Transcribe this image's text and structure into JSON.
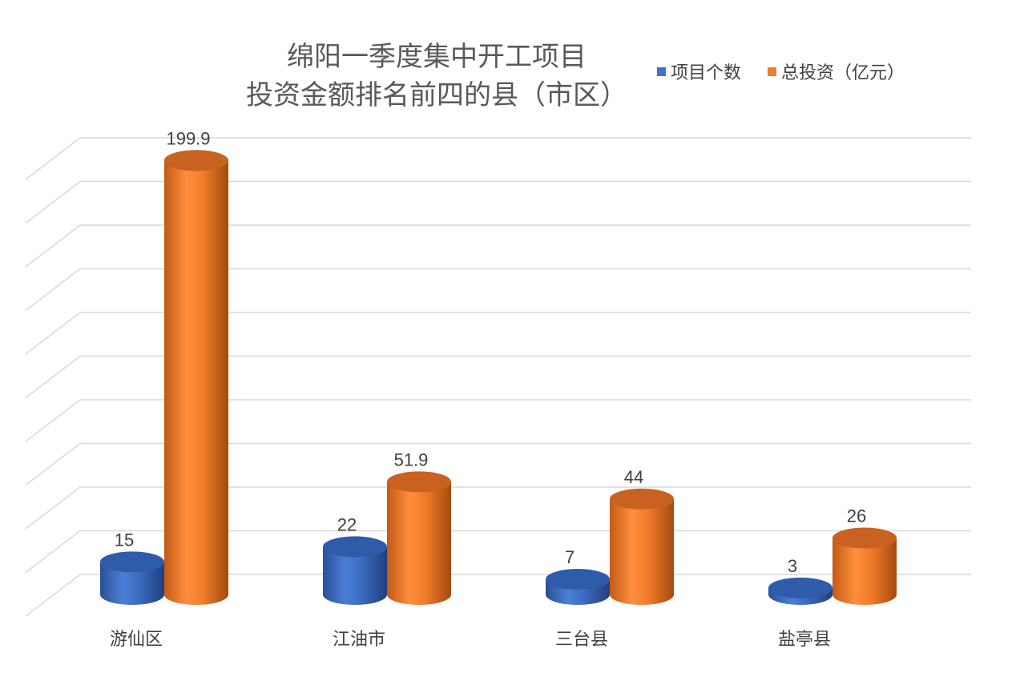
{
  "chart_data": {
    "type": "bar",
    "title": "绵阳一季度集中开工项目投资金额排名前四的县（市区）",
    "title_lines": [
      "绵阳一季度集中开工项目",
      "投资金额排名前四的县（市区）"
    ],
    "categories": [
      "游仙区",
      "江油市",
      "三台县",
      "盐亭县"
    ],
    "series": [
      {
        "name": "项目个数",
        "values": [
          15,
          22,
          7,
          3
        ],
        "labels": [
          "15",
          "22",
          "7",
          "3"
        ],
        "color": "#4472C4"
      },
      {
        "name": "总投资（亿元）",
        "values": [
          199.9,
          51.9,
          44,
          26
        ],
        "labels": [
          "199.9",
          "51.9",
          "44",
          "26"
        ],
        "color": "#ED7D31"
      }
    ],
    "ylim": [
      0,
      200
    ],
    "grid": true,
    "legend_position": "top-right",
    "shape": "3d-cylinder"
  }
}
